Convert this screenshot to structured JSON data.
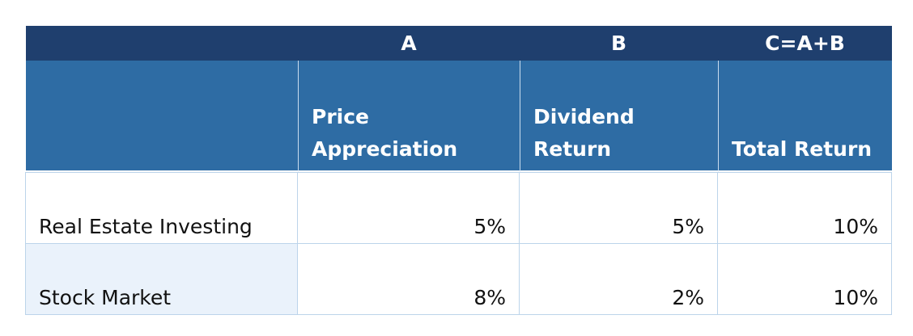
{
  "table": {
    "group_labels": [
      "A",
      "B",
      "C=A+B"
    ],
    "headers": [
      "Price Appreciation",
      "Dividend Return",
      "Total Return"
    ],
    "rows": [
      [
        "Real Estate Investing",
        "5%",
        "5%",
        "10%"
      ],
      [
        "Stock Market",
        "8%",
        "2%",
        "10%"
      ]
    ]
  }
}
